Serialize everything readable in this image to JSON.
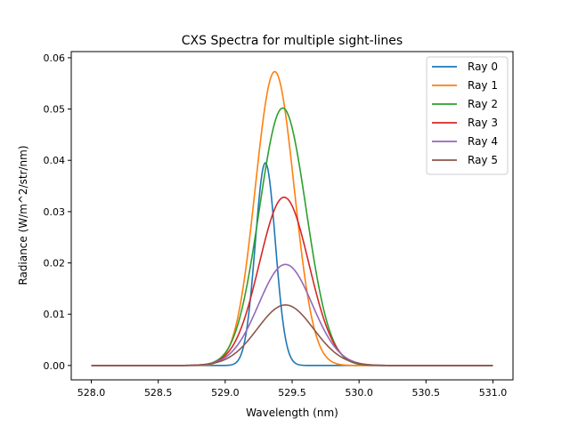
{
  "chart_data": {
    "type": "line",
    "title": "CXS Spectra for multiple sight-lines",
    "xlabel": "Wavelength (nm)",
    "ylabel": "Radiance (W/m^2/str/nm)",
    "xlim": [
      527.85,
      531.15
    ],
    "ylim": [
      -0.0028,
      0.0612
    ],
    "xticks": [
      528.0,
      528.5,
      529.0,
      529.5,
      530.0,
      530.5,
      531.0
    ],
    "xtick_labels": [
      "528.0",
      "528.5",
      "529.0",
      "529.5",
      "530.0",
      "530.5",
      "531.0"
    ],
    "yticks": [
      0.0,
      0.01,
      0.02,
      0.03,
      0.04,
      0.05,
      0.06
    ],
    "ytick_labels": [
      "0.00",
      "0.01",
      "0.02",
      "0.03",
      "0.04",
      "0.05",
      "0.06"
    ],
    "x_range": [
      528.0,
      531.0
    ],
    "grid": false,
    "legend_position": "top-right",
    "series": [
      {
        "name": "Ray 0",
        "color": "#1f77b4",
        "shape": "gaussian",
        "peak_x": 529.3,
        "peak_y": 0.0395,
        "sigma": 0.075
      },
      {
        "name": "Ray 1",
        "color": "#ff7f0e",
        "shape": "gaussian",
        "peak_x": 529.37,
        "peak_y": 0.0573,
        "sigma": 0.145
      },
      {
        "name": "Ray 2",
        "color": "#2ca02c",
        "shape": "gaussian",
        "peak_x": 529.43,
        "peak_y": 0.0502,
        "sigma": 0.175
      },
      {
        "name": "Ray 3",
        "color": "#d62728",
        "shape": "gaussian",
        "peak_x": 529.44,
        "peak_y": 0.0328,
        "sigma": 0.185
      },
      {
        "name": "Ray 4",
        "color": "#9467bd",
        "shape": "gaussian",
        "peak_x": 529.45,
        "peak_y": 0.0197,
        "sigma": 0.2
      },
      {
        "name": "Ray 5",
        "color": "#8c564b",
        "shape": "gaussian",
        "peak_x": 529.45,
        "peak_y": 0.0118,
        "sigma": 0.21
      }
    ]
  }
}
